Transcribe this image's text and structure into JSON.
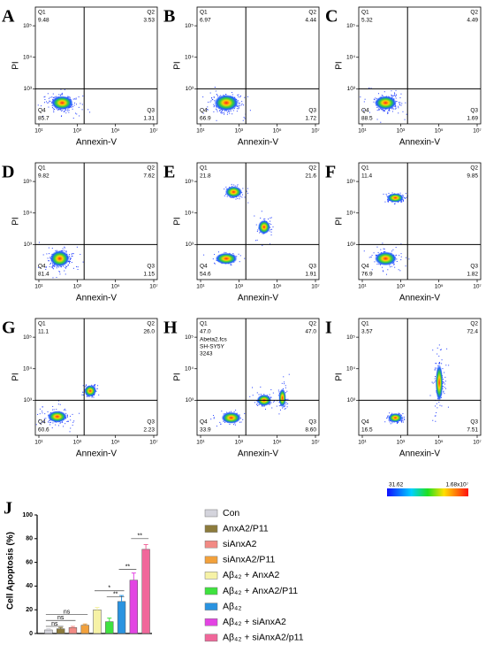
{
  "panels": [
    {
      "letter": "A",
      "q1": "9.48",
      "q2": "3.53",
      "q3": "1.31",
      "q4": "85.7"
    },
    {
      "letter": "B",
      "q1": "6.97",
      "q2": "4.44",
      "q3": "1.72",
      "q4": "66.9"
    },
    {
      "letter": "C",
      "q1": "5.32",
      "q2": "4.49",
      "q3": "1.69",
      "q4": "88.5"
    },
    {
      "letter": "D",
      "q1": "9.82",
      "q2": "7.62",
      "q3": "1.15",
      "q4": "81.4"
    },
    {
      "letter": "E",
      "q1": "21.8",
      "q2": "21.6",
      "q3": "1.91",
      "q4": "54.6"
    },
    {
      "letter": "F",
      "q1": "11.4",
      "q2": "9.85",
      "q3": "1.82",
      "q4": "76.9"
    },
    {
      "letter": "G",
      "q1": "11.1",
      "q2": "26.0",
      "q3": "2.23",
      "q4": "60.6"
    },
    {
      "letter": "H",
      "q1": "47.0",
      "q2": "47.0",
      "q3": "8.60",
      "q4": "33.9",
      "notes": [
        "Abeta2.fcs",
        "SH-SY5Y",
        "3243"
      ]
    },
    {
      "letter": "I",
      "q1": "3.57",
      "q2": "72.4",
      "q3": "7.51",
      "q4": "16.5"
    }
  ],
  "flow_axes": {
    "xlabel": "Annexin-V",
    "ylabel": "PI",
    "quadrants": [
      "Q1",
      "Q2",
      "Q3",
      "Q4"
    ],
    "xticks": [
      "10¹",
      "10³",
      "10⁵",
      "10⁷"
    ],
    "yticks": [
      "10³",
      "10⁴",
      "10⁵"
    ]
  },
  "colorbar": {
    "min": "31.62",
    "max": "1.68x10⁷"
  },
  "chart_data": {
    "type": "bar",
    "panel_letter": "J",
    "ylabel": "Cell Apoptosis (%)",
    "categories": [
      "Con",
      "AnxA2/P11",
      "siAnxA2",
      "siAnxA2/P11",
      "Aβ₄₂ + AnxA2",
      "Aβ₄₂ + AnxA2/P11",
      "Aβ₄₂",
      "Aβ₄₂ + siAnxA2",
      "Aβ₄₂ + siAnxA2/p11"
    ],
    "values": [
      3,
      4,
      5,
      7,
      20,
      10,
      27,
      45,
      71
    ],
    "errors": [
      1,
      1,
      1,
      1,
      2,
      3,
      5,
      6,
      4
    ],
    "colors": [
      "#d4d4dc",
      "#8c7b3c",
      "#f28a84",
      "#f2a13c",
      "#f6f2a6",
      "#3fe23f",
      "#2a93e0",
      "#e344e3",
      "#f0679a"
    ],
    "ylim": [
      0,
      100
    ],
    "yticks": [
      0,
      20,
      40,
      60,
      80,
      100
    ],
    "annotations": [
      "ns",
      "ns",
      "ns",
      "*",
      "**",
      "**",
      "**"
    ]
  }
}
